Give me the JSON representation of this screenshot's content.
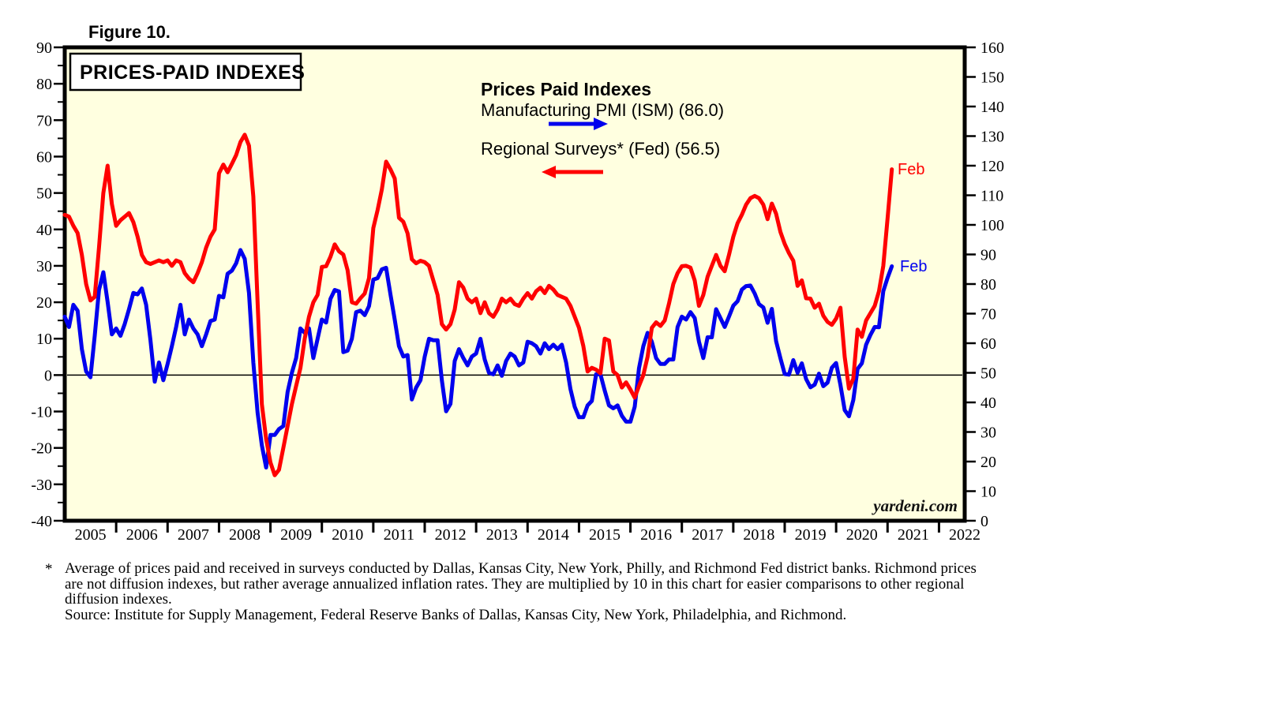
{
  "figure_label": "Figure 10.",
  "box_title": "PRICES-PAID INDEXES",
  "watermark": "yardeni.com",
  "legend": {
    "title": "Prices Paid Indexes",
    "pmi_label": "Manufacturing PMI (ISM) (86.0)",
    "regional_label": "Regional Surveys* (Fed) (56.5)"
  },
  "end_labels": {
    "pmi": "Feb",
    "regional": "Feb"
  },
  "footnote": {
    "marker": "*",
    "text": "Average of prices paid and received in surveys conducted by Dallas, Kansas City, New York, Philly, and Richmond Fed district banks. Richmond prices are not diffusion indexes, but rather average annualized inflation rates. They are multiplied by 10 in this chart for easier comparisons to other regional diffusion indexes.",
    "source": "Source: Institute for Supply Management, Federal Reserve Banks of Dallas, Kansas City, New York, Philadelphia, and Richmond."
  },
  "colors": {
    "pmi": "#0000EE",
    "regional": "#FF0000",
    "plot_bg": "#FFFFE0",
    "axis": "#000000",
    "box_fill": "#FFFFFF"
  },
  "chart_data": {
    "type": "line",
    "title": "PRICES-PAID INDEXES",
    "x_start": "2005-01",
    "x_end": "2021-02",
    "frequency": "monthly",
    "x_axis_visible_span": [
      2005,
      2022.5
    ],
    "x_tick_years": [
      2005,
      2006,
      2007,
      2008,
      2009,
      2010,
      2011,
      2012,
      2013,
      2014,
      2015,
      2016,
      2017,
      2018,
      2019,
      2020,
      2021,
      2022
    ],
    "left_axis": {
      "min": -40,
      "max": 90,
      "tick_step": 10,
      "minor_step": 5
    },
    "right_axis": {
      "min": 0,
      "max": 160,
      "tick_step": 10
    },
    "zero_line_left_value": 0,
    "legend_position": "top-center",
    "grid": false,
    "series": [
      {
        "name": "Manufacturing PMI (ISM)",
        "axis": "right",
        "color_key": "pmi",
        "latest_value": 86.0,
        "latest_label": "Feb",
        "values": [
          69,
          65.5,
          73,
          71,
          58,
          50.5,
          48.5,
          62.5,
          78,
          84,
          74,
          63,
          65,
          62.5,
          66.5,
          71.5,
          77,
          76.5,
          78.5,
          73,
          61,
          47,
          53.5,
          47.5,
          53,
          59,
          65.5,
          73,
          63,
          68,
          65,
          63,
          59,
          63,
          67.5,
          68,
          76,
          75.5,
          83.5,
          84.5,
          87,
          91.5,
          88.5,
          77,
          53.5,
          36.5,
          25.5,
          18,
          29,
          29,
          31,
          32,
          43.5,
          50,
          55,
          65,
          63.5,
          65,
          55,
          61.5,
          68,
          67,
          75,
          78,
          77.5,
          57,
          57.5,
          61.5,
          70.5,
          71,
          69.5,
          72.5,
          81.5,
          82,
          85,
          85.5,
          76.5,
          68,
          59,
          55.5,
          56,
          41,
          45,
          47.5,
          55.5,
          61.5,
          61,
          61,
          47.5,
          37,
          39.5,
          54,
          58,
          55,
          52.5,
          55.5,
          56.5,
          61.5,
          54.5,
          50,
          49.5,
          52.5,
          49,
          54,
          56.5,
          55.5,
          52.5,
          53.5,
          60.5,
          60,
          59,
          56.5,
          60,
          58,
          59.5,
          58,
          59.5,
          53.5,
          44.5,
          38.5,
          35,
          35,
          39,
          40.5,
          49.5,
          49.5,
          44,
          39,
          38,
          39,
          35.5,
          33.5,
          33.5,
          38.5,
          51.5,
          59,
          63.5,
          60.5,
          55,
          53,
          53,
          54.5,
          54.5,
          65.5,
          69,
          68,
          70.5,
          68.5,
          60.5,
          55,
          62,
          62,
          71.5,
          68.5,
          65.5,
          69,
          72.7,
          74.2,
          78.1,
          79.3,
          79.5,
          76.8,
          73.2,
          72.1,
          66.9,
          71.6,
          60.7,
          54.9,
          49.6,
          49.4,
          54.3,
          50,
          53.2,
          47.9,
          45.1,
          46,
          49.7,
          45.5,
          46.7,
          51.7,
          53.3,
          45.9,
          37.4,
          35.3,
          40.8,
          51.3,
          53.2,
          59.5,
          62.8,
          65.5,
          65.4,
          77.6,
          82.1,
          86
        ]
      },
      {
        "name": "Regional Surveys (Fed)",
        "axis": "left",
        "color_key": "regional",
        "latest_value": 56.5,
        "latest_label": "Feb",
        "values": [
          44,
          43.5,
          41,
          39,
          33,
          25,
          20.5,
          21.5,
          35,
          50,
          57.5,
          47,
          41,
          42.5,
          43.5,
          44.5,
          42,
          38,
          33,
          31,
          30.5,
          31,
          31.5,
          31,
          31.5,
          30,
          31.5,
          31,
          28,
          26.5,
          25.5,
          28,
          31,
          35,
          38,
          40,
          55.4,
          57.8,
          55.7,
          58,
          60.4,
          64,
          66,
          63,
          49,
          20,
          -8,
          -17.5,
          -24,
          -27.5,
          -26,
          -20,
          -14,
          -8,
          -3,
          2,
          10,
          16,
          20,
          22,
          29.7,
          29.9,
          32.5,
          35.9,
          34,
          33.1,
          28.8,
          20,
          19.6,
          21.1,
          22.4,
          26.6,
          40.4,
          45.3,
          51,
          58.6,
          56.5,
          54,
          43.2,
          42.1,
          38.9,
          31.8,
          30.7,
          31.4,
          31,
          30,
          26,
          22,
          14,
          12.5,
          14,
          18,
          25.5,
          24,
          21,
          20,
          21,
          17,
          20,
          17,
          16,
          18,
          21,
          20,
          21,
          19.5,
          19,
          21,
          22.5,
          21,
          23,
          24,
          22.5,
          24.5,
          23.5,
          22,
          21.5,
          21,
          19,
          16,
          13,
          8,
          1,
          2,
          1.5,
          0.5,
          10,
          9.5,
          1,
          0,
          -3.4,
          -2,
          -4,
          -6.2,
          -3,
          0,
          5,
          13,
          14.5,
          13.5,
          15,
          19.6,
          25,
          28,
          29.9,
          30,
          29.5,
          26,
          19,
          22,
          27,
          30,
          33,
          30,
          28.5,
          33,
          38,
          41.7,
          44,
          46.8,
          48.6,
          49.2,
          48.6,
          46.8,
          42.8,
          47.1,
          44.3,
          39.3,
          36,
          33.5,
          31.4,
          24.5,
          26,
          21.1,
          21,
          18.5,
          19.6,
          16.3,
          14.6,
          13.8,
          15.5,
          18.5,
          5,
          -3.7,
          -1,
          12.5,
          10.5,
          15,
          17,
          19,
          23,
          30,
          43,
          56.5
        ]
      }
    ]
  }
}
